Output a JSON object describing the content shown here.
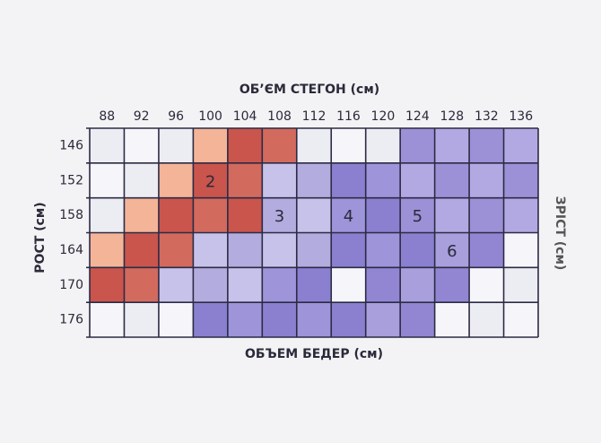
{
  "top_title": "ОБ’ЄМ СТЕГОН (см)",
  "bottom_title": "ОБЪЕМ БЕДЕР (см)",
  "left_title": "РОСТ (см)",
  "right_title": "ЗРІСТ (см)",
  "columns": [
    88,
    92,
    96,
    100,
    104,
    108,
    112,
    116,
    120,
    124,
    128,
    132,
    136
  ],
  "rows": [
    146,
    152,
    158,
    164,
    170,
    176
  ],
  "cells": [
    [
      0,
      0,
      0,
      1,
      2,
      2,
      0,
      0,
      0,
      5,
      5,
      5,
      5
    ],
    [
      0,
      0,
      1,
      2,
      2,
      3,
      3,
      4,
      4,
      5,
      5,
      5,
      5
    ],
    [
      0,
      1,
      2,
      2,
      2,
      3,
      3,
      4,
      4,
      5,
      5,
      5,
      5
    ],
    [
      1,
      2,
      2,
      3,
      3,
      3,
      3,
      4,
      4,
      4,
      6,
      6,
      0
    ],
    [
      2,
      2,
      3,
      3,
      3,
      4,
      4,
      0,
      6,
      6,
      6,
      0,
      0
    ],
    [
      0,
      0,
      0,
      4,
      4,
      4,
      4,
      4,
      6,
      6,
      0,
      0,
      0
    ]
  ],
  "zone_labels": [
    {
      "text": "2",
      "row": 1,
      "col": 3
    },
    {
      "text": "3",
      "row": 2,
      "col": 5
    },
    {
      "text": "4",
      "row": 2,
      "col": 7
    },
    {
      "text": "5",
      "row": 2,
      "col": 9
    },
    {
      "text": "6",
      "row": 3,
      "col": 10
    }
  ]
}
